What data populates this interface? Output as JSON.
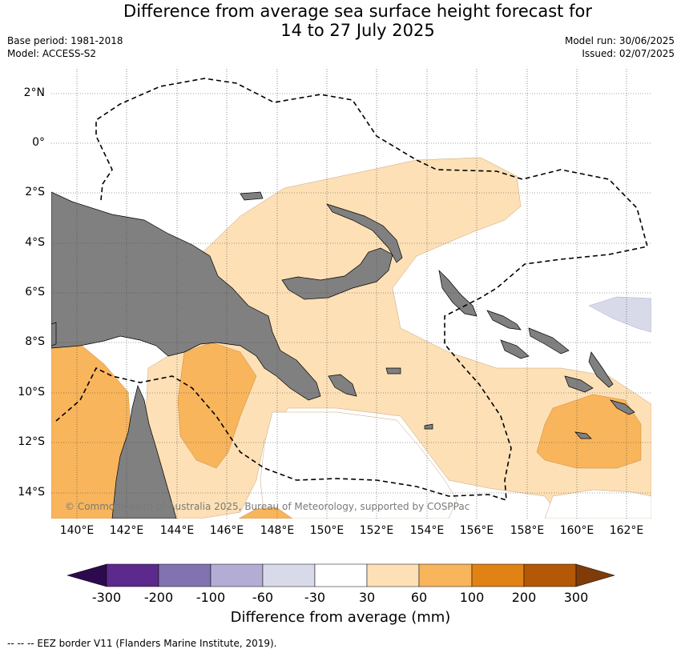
{
  "header": {
    "title_line1": "Difference from average sea surface height forecast for",
    "title_line2": "14 to 27 July 2025",
    "base_period": "Base period: 1981-2018",
    "model": "Model: ACCESS-S2",
    "model_run": "Model run: 30/06/2025",
    "issued": "Issued: 02/07/2025"
  },
  "map": {
    "lat_labels": [
      "2°N",
      "0°",
      "2°S",
      "4°S",
      "6°S",
      "8°S",
      "10°S",
      "12°S",
      "14°S"
    ],
    "lon_labels": [
      "140°E",
      "142°E",
      "144°E",
      "146°E",
      "148°E",
      "150°E",
      "152°E",
      "154°E",
      "156°E",
      "158°E",
      "160°E",
      "162°E"
    ],
    "copyright": "© Commonwealth of Australia 2025, Bureau of Meteorology, supported by COSPPac",
    "land_color": "#808080",
    "gridlines": true
  },
  "colorbar": {
    "title": "Difference from average (mm)",
    "tick_labels": [
      "-300",
      "-200",
      "-100",
      "-60",
      "-30",
      "30",
      "60",
      "100",
      "200",
      "300"
    ],
    "colors": [
      "#2d0a4e",
      "#5b2a8c",
      "#8272b0",
      "#b3acd4",
      "#d9dae9",
      "#ffffff",
      "#fde0b6",
      "#f8b55c",
      "#e08214",
      "#b35806",
      "#7f3b08"
    ]
  },
  "footer": {
    "eez_note": "--  --  -- EEZ border V11 (Flanders Marine Institute, 2019)."
  }
}
